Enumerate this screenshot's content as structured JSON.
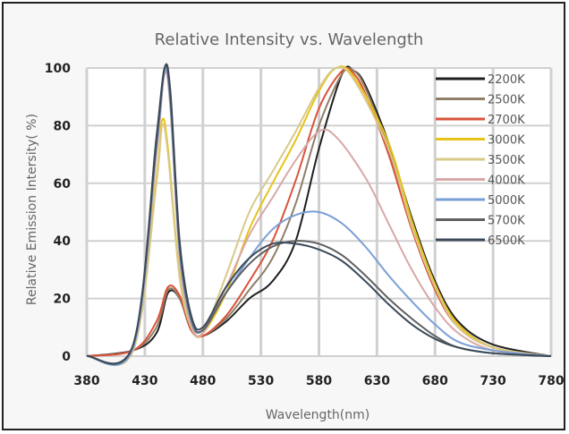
{
  "chart_data": {
    "type": "line",
    "title": "Relative Intensity vs. Wavelength",
    "xlabel": "Wavelength(nm)",
    "ylabel": "Relative Emission Intersity( %)",
    "xlim": [
      380,
      780
    ],
    "ylim": [
      0,
      100
    ],
    "x_ticks": [
      380,
      430,
      480,
      530,
      580,
      630,
      680,
      730,
      780
    ],
    "y_ticks": [
      0,
      20,
      40,
      60,
      80,
      100
    ],
    "grid": true,
    "legend_position": "right",
    "series": [
      {
        "name": "2200K",
        "color": "#1f1f1f",
        "points": [
          [
            380,
            0
          ],
          [
            420,
            2
          ],
          [
            440,
            8
          ],
          [
            450,
            22
          ],
          [
            460,
            20
          ],
          [
            470,
            9
          ],
          [
            480,
            7
          ],
          [
            500,
            12
          ],
          [
            520,
            20
          ],
          [
            540,
            26
          ],
          [
            560,
            40
          ],
          [
            580,
            72
          ],
          [
            600,
            98
          ],
          [
            610,
            99
          ],
          [
            620,
            94
          ],
          [
            640,
            74
          ],
          [
            660,
            48
          ],
          [
            680,
            26
          ],
          [
            700,
            12
          ],
          [
            730,
            4
          ],
          [
            780,
            0
          ]
        ]
      },
      {
        "name": "2500K",
        "color": "#8f7d68",
        "points": [
          [
            380,
            0
          ],
          [
            420,
            2
          ],
          [
            440,
            10
          ],
          [
            450,
            23
          ],
          [
            460,
            20
          ],
          [
            470,
            9
          ],
          [
            480,
            7
          ],
          [
            500,
            13
          ],
          [
            520,
            23
          ],
          [
            540,
            34
          ],
          [
            560,
            53
          ],
          [
            580,
            80
          ],
          [
            600,
            98
          ],
          [
            610,
            99
          ],
          [
            620,
            93
          ],
          [
            640,
            72
          ],
          [
            660,
            46
          ],
          [
            680,
            24
          ],
          [
            700,
            11
          ],
          [
            730,
            3
          ],
          [
            780,
            0
          ]
        ]
      },
      {
        "name": "2700K",
        "color": "#d9533a",
        "points": [
          [
            380,
            0
          ],
          [
            420,
            2
          ],
          [
            440,
            12
          ],
          [
            450,
            24
          ],
          [
            460,
            21
          ],
          [
            470,
            9
          ],
          [
            480,
            7
          ],
          [
            500,
            14
          ],
          [
            520,
            26
          ],
          [
            540,
            40
          ],
          [
            560,
            61
          ],
          [
            580,
            86
          ],
          [
            600,
            99
          ],
          [
            610,
            98
          ],
          [
            620,
            91
          ],
          [
            640,
            70
          ],
          [
            660,
            44
          ],
          [
            680,
            23
          ],
          [
            700,
            10
          ],
          [
            730,
            3
          ],
          [
            780,
            0
          ]
        ]
      },
      {
        "name": "3000K",
        "color": "#e8c31a",
        "points": [
          [
            380,
            0
          ],
          [
            420,
            2
          ],
          [
            440,
            62
          ],
          [
            445,
            82
          ],
          [
            450,
            72
          ],
          [
            460,
            28
          ],
          [
            470,
            10
          ],
          [
            480,
            8
          ],
          [
            500,
            22
          ],
          [
            520,
            44
          ],
          [
            540,
            60
          ],
          [
            560,
            75
          ],
          [
            580,
            92
          ],
          [
            595,
            100
          ],
          [
            610,
            97
          ],
          [
            640,
            74
          ],
          [
            660,
            47
          ],
          [
            680,
            25
          ],
          [
            700,
            11
          ],
          [
            730,
            3
          ],
          [
            780,
            0
          ]
        ]
      },
      {
        "name": "3500K",
        "color": "#d8c989",
        "points": [
          [
            380,
            0
          ],
          [
            420,
            2
          ],
          [
            440,
            60
          ],
          [
            445,
            80
          ],
          [
            450,
            70
          ],
          [
            460,
            27
          ],
          [
            470,
            10
          ],
          [
            480,
            8
          ],
          [
            500,
            28
          ],
          [
            520,
            50
          ],
          [
            540,
            64
          ],
          [
            560,
            78
          ],
          [
            580,
            93
          ],
          [
            595,
            100
          ],
          [
            610,
            96
          ],
          [
            640,
            72
          ],
          [
            660,
            45
          ],
          [
            680,
            24
          ],
          [
            700,
            10
          ],
          [
            730,
            3
          ],
          [
            780,
            0
          ]
        ]
      },
      {
        "name": "4000K",
        "color": "#d8a8a8",
        "points": [
          [
            380,
            0
          ],
          [
            420,
            3
          ],
          [
            440,
            70
          ],
          [
            447,
            98
          ],
          [
            452,
            86
          ],
          [
            460,
            34
          ],
          [
            470,
            11
          ],
          [
            480,
            8
          ],
          [
            500,
            24
          ],
          [
            520,
            42
          ],
          [
            540,
            55
          ],
          [
            560,
            68
          ],
          [
            580,
            78
          ],
          [
            595,
            76
          ],
          [
            620,
            62
          ],
          [
            640,
            46
          ],
          [
            660,
            30
          ],
          [
            680,
            17
          ],
          [
            700,
            8
          ],
          [
            730,
            2
          ],
          [
            780,
            0
          ]
        ]
      },
      {
        "name": "5000K",
        "color": "#7a9fd6",
        "points": [
          [
            380,
            0
          ],
          [
            420,
            3
          ],
          [
            440,
            72
          ],
          [
            447,
            99
          ],
          [
            452,
            88
          ],
          [
            460,
            36
          ],
          [
            470,
            12
          ],
          [
            480,
            9
          ],
          [
            500,
            22
          ],
          [
            520,
            34
          ],
          [
            540,
            44
          ],
          [
            560,
            49
          ],
          [
            580,
            50
          ],
          [
            600,
            46
          ],
          [
            620,
            38
          ],
          [
            640,
            28
          ],
          [
            660,
            19
          ],
          [
            680,
            11
          ],
          [
            700,
            5
          ],
          [
            730,
            2
          ],
          [
            780,
            0
          ]
        ]
      },
      {
        "name": "5700K",
        "color": "#5f5f5f",
        "points": [
          [
            380,
            0
          ],
          [
            420,
            4
          ],
          [
            440,
            74
          ],
          [
            447,
            100
          ],
          [
            452,
            90
          ],
          [
            460,
            38
          ],
          [
            470,
            13
          ],
          [
            480,
            9
          ],
          [
            500,
            22
          ],
          [
            520,
            32
          ],
          [
            540,
            38
          ],
          [
            560,
            40
          ],
          [
            580,
            39
          ],
          [
            600,
            35
          ],
          [
            620,
            28
          ],
          [
            640,
            20
          ],
          [
            660,
            13
          ],
          [
            680,
            7
          ],
          [
            700,
            3
          ],
          [
            730,
            1
          ],
          [
            780,
            0
          ]
        ]
      },
      {
        "name": "6500K",
        "color": "#3b4a5a",
        "points": [
          [
            380,
            0
          ],
          [
            420,
            4
          ],
          [
            440,
            76
          ],
          [
            447,
            100
          ],
          [
            452,
            92
          ],
          [
            460,
            40
          ],
          [
            470,
            14
          ],
          [
            480,
            10
          ],
          [
            500,
            24
          ],
          [
            520,
            34
          ],
          [
            540,
            39
          ],
          [
            560,
            39
          ],
          [
            580,
            37
          ],
          [
            600,
            33
          ],
          [
            620,
            26
          ],
          [
            640,
            18
          ],
          [
            660,
            11
          ],
          [
            680,
            6
          ],
          [
            700,
            3
          ],
          [
            730,
            1
          ],
          [
            780,
            0
          ]
        ]
      }
    ]
  }
}
